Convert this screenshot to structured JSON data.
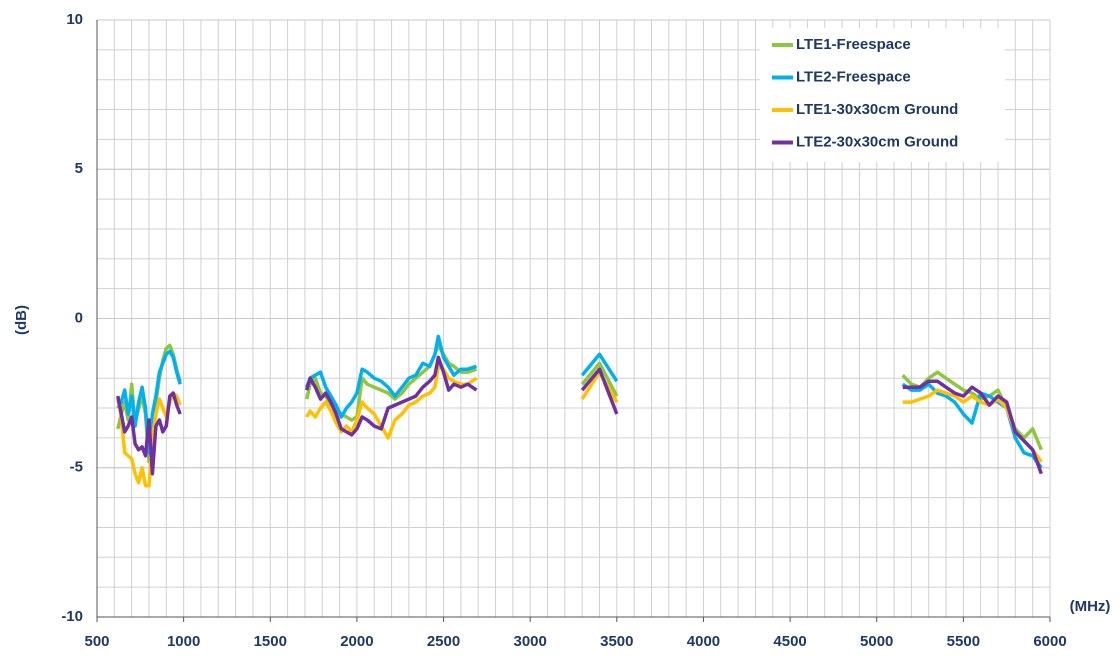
{
  "chart_data": {
    "type": "line",
    "x_label": "(MHz)",
    "y_label": "(dB)",
    "x": [
      620,
      640,
      660,
      680,
      700,
      720,
      740,
      760,
      780,
      800,
      820,
      840,
      860,
      880,
      900,
      920,
      940,
      960,
      980,
      1300,
      1710,
      1730,
      1760,
      1790,
      1820,
      1850,
      1880,
      1910,
      1940,
      1970,
      2000,
      2030,
      2060,
      2100,
      2140,
      2180,
      2220,
      2260,
      2300,
      2340,
      2380,
      2420,
      2450,
      2470,
      2500,
      2530,
      2560,
      2600,
      2640,
      2690,
      3000,
      3300,
      3400,
      3500,
      4300,
      5150,
      5200,
      5250,
      5300,
      5350,
      5400,
      5450,
      5500,
      5550,
      5600,
      5650,
      5700,
      5750,
      5800,
      5850,
      5900,
      5950
    ],
    "series": [
      {
        "name": "LTE1-Freespace",
        "color": "#8dc63f",
        "values": [
          -3.7,
          -3.2,
          -2.8,
          -3.4,
          -2.2,
          -3.5,
          -3.0,
          -2.6,
          -3.2,
          -4.8,
          -3.5,
          -2.8,
          -2.0,
          -1.4,
          -1.0,
          -0.9,
          -1.2,
          -1.7,
          -2.1,
          null,
          -2.7,
          -2.2,
          -2.0,
          -2.5,
          -2.6,
          -2.9,
          -3.0,
          -3.2,
          -3.3,
          -3.4,
          -3.3,
          -2.0,
          -2.2,
          -2.3,
          -2.4,
          -2.5,
          -2.7,
          -2.5,
          -2.2,
          -2.0,
          -1.8,
          -1.6,
          -1.2,
          -0.9,
          -1.2,
          -1.5,
          -1.6,
          -1.8,
          -1.8,
          -1.7,
          null,
          -2.2,
          -1.5,
          -2.6,
          null,
          -1.9,
          -2.2,
          -2.3,
          -2.0,
          -1.8,
          -2.0,
          -2.2,
          -2.4,
          -2.5,
          -2.7,
          -2.6,
          -2.4,
          -3.0,
          -3.7,
          -4.0,
          -3.7,
          -4.4
        ]
      },
      {
        "name": "LTE2-Freespace",
        "color": "#00b0f0",
        "values": [
          -3.0,
          -2.8,
          -2.4,
          -3.2,
          -2.6,
          -3.6,
          -2.8,
          -2.3,
          -3.0,
          -4.5,
          -3.2,
          -2.6,
          -1.8,
          -1.5,
          -1.2,
          -1.1,
          -1.3,
          -1.8,
          -2.2,
          null,
          -2.3,
          -2.0,
          -1.9,
          -1.8,
          -2.3,
          -2.6,
          -2.9,
          -3.3,
          -3.0,
          -2.8,
          -2.5,
          -1.7,
          -1.8,
          -2.0,
          -2.1,
          -2.3,
          -2.6,
          -2.3,
          -2.0,
          -1.9,
          -1.5,
          -1.6,
          -1.2,
          -0.6,
          -1.3,
          -1.6,
          -1.9,
          -1.7,
          -1.7,
          -1.6,
          null,
          -1.9,
          -1.2,
          -2.1,
          null,
          -2.2,
          -2.4,
          -2.4,
          -2.2,
          -2.5,
          -2.6,
          -2.8,
          -3.2,
          -3.5,
          -2.5,
          -2.6,
          -2.8,
          -3.0,
          -4.0,
          -4.5,
          -4.6,
          -5.0
        ]
      },
      {
        "name": "LTE1-30x30cm Ground",
        "color": "#ffc000",
        "values": [
          -2.7,
          -3.3,
          -4.5,
          -4.6,
          -4.7,
          -5.2,
          -5.5,
          -5.0,
          -5.6,
          -5.6,
          -4.0,
          -3.2,
          -2.7,
          -3.0,
          -3.3,
          -2.8,
          -2.5,
          -2.6,
          -2.9,
          null,
          -3.3,
          -3.1,
          -3.3,
          -3.0,
          -2.8,
          -3.1,
          -3.5,
          -3.8,
          -3.6,
          -3.8,
          -3.4,
          -2.8,
          -3.0,
          -3.2,
          -3.6,
          -4.0,
          -3.4,
          -3.2,
          -2.9,
          -2.8,
          -2.6,
          -2.5,
          -2.3,
          -1.6,
          -1.7,
          -2.0,
          -2.1,
          -2.2,
          -2.2,
          -2.0,
          null,
          -2.7,
          -1.8,
          -2.8,
          null,
          -2.8,
          -2.8,
          -2.7,
          -2.6,
          -2.4,
          -2.5,
          -2.6,
          -2.8,
          -2.6,
          -2.8,
          -2.9,
          -2.7,
          -3.0,
          -3.8,
          -4.1,
          -4.4,
          -4.8
        ]
      },
      {
        "name": "LTE2-30x30cm Ground",
        "color": "#7030a0",
        "values": [
          -2.6,
          -3.2,
          -3.8,
          -3.6,
          -3.3,
          -4.2,
          -4.4,
          -4.3,
          -4.6,
          -3.4,
          -5.2,
          -3.6,
          -3.4,
          -3.8,
          -3.6,
          -2.6,
          -2.5,
          -2.9,
          -3.2,
          null,
          -2.4,
          -2.0,
          -2.3,
          -2.7,
          -2.5,
          -2.8,
          -3.2,
          -3.7,
          -3.8,
          -3.9,
          -3.7,
          -3.3,
          -3.4,
          -3.6,
          -3.7,
          -3.0,
          -2.9,
          -2.8,
          -2.7,
          -2.6,
          -2.3,
          -2.1,
          -1.9,
          -1.3,
          -1.8,
          -2.4,
          -2.2,
          -2.3,
          -2.2,
          -2.4,
          null,
          -2.4,
          -1.7,
          -3.2,
          null,
          -2.3,
          -2.3,
          -2.3,
          -2.1,
          -2.1,
          -2.3,
          -2.5,
          -2.6,
          -2.3,
          -2.5,
          -2.9,
          -2.6,
          -2.8,
          -3.8,
          -4.1,
          -4.4,
          -5.2
        ]
      }
    ],
    "xlim": [
      500,
      6000
    ],
    "xticks": [
      500,
      1000,
      1500,
      2000,
      2500,
      3000,
      3500,
      4000,
      4500,
      5000,
      5500,
      6000
    ],
    "ylim": [
      -10,
      10
    ],
    "yticks": [
      10,
      5,
      0,
      -5,
      -10
    ],
    "grid": true,
    "minor_grid": {
      "x": 100,
      "y": 1
    },
    "legend": "upper right"
  }
}
